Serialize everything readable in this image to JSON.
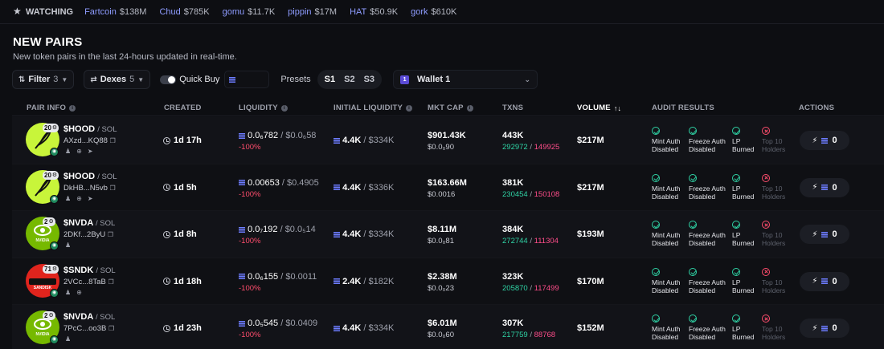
{
  "watchbar": {
    "label": "WATCHING",
    "items": [
      {
        "symbol": "Fartcoin",
        "value": "$138M"
      },
      {
        "symbol": "Chud",
        "value": "$785K"
      },
      {
        "symbol": "gomu",
        "value": "$11.7K"
      },
      {
        "symbol": "pippin",
        "value": "$17M"
      },
      {
        "symbol": "HAT",
        "value": "$50.9K"
      },
      {
        "symbol": "gork",
        "value": "$610K"
      }
    ]
  },
  "page": {
    "title": "NEW PAIRS",
    "subtitle": "New token pairs in the last 24-hours updated in real-time."
  },
  "toolbar": {
    "filter_label": "Filter",
    "filter_count": "3",
    "dexes_label": "Dexes",
    "dexes_count": "5",
    "quick_buy_label": "Quick Buy",
    "presets_label": "Presets",
    "presets": [
      "S1",
      "S2",
      "S3"
    ],
    "wallet_label": "Wallet 1",
    "wallet_icon_text": "1"
  },
  "columns": {
    "pair_info": "PAIR INFO",
    "created": "CREATED",
    "liquidity": "LIQUIDITY",
    "initial_liquidity": "INITIAL LIQUIDITY",
    "mkt_cap": "MKT CAP",
    "txns": "TXNS",
    "volume": "VOLUME",
    "audit_results": "AUDIT RESULTS",
    "actions": "ACTIONS"
  },
  "audit_labels": {
    "mint": "Mint Auth Disabled",
    "freeze": "Freeze Auth Disabled",
    "lp": "LP Burned",
    "top10": "Top 10 Holders"
  },
  "rows": [
    {
      "symbol": "$HOOD",
      "chain": "SOL",
      "address": "AXzd...KQ88",
      "badge": "20",
      "avatar_color": "#c8f53a",
      "avatar_text": "",
      "created": "1d 17h",
      "liq_main": "0.0₆782",
      "liq_sub": "$0.0₆58",
      "liq_pct": "-100%",
      "iliq_main": "4.4K",
      "iliq_sub": "$334K",
      "mcap": "$901.43K",
      "price": "$0.0₀90",
      "txns": "443K",
      "buys": "292972",
      "sells": "149925",
      "volume": "$217M",
      "action": "0"
    },
    {
      "symbol": "$HOOD",
      "chain": "SOL",
      "address": "DkHB...N5vb",
      "badge": "20",
      "avatar_color": "#c8f53a",
      "avatar_text": "",
      "created": "1d 5h",
      "liq_main": "0.00653",
      "liq_sub": "$0.4905",
      "liq_pct": "-100%",
      "iliq_main": "4.4K",
      "iliq_sub": "$336K",
      "mcap": "$163.66M",
      "price": "$0.0016",
      "txns": "381K",
      "buys": "230454",
      "sells": "150108",
      "volume": "$217M",
      "action": "0"
    },
    {
      "symbol": "$NVDA",
      "chain": "SOL",
      "address": "2DKf...2ByU",
      "badge": "2",
      "avatar_color": "#76b900",
      "avatar_text": "NVIDIA",
      "created": "1d 8h",
      "liq_main": "0.0₇192",
      "liq_sub": "$0.0₅14",
      "liq_pct": "-100%",
      "iliq_main": "4.4K",
      "iliq_sub": "$334K",
      "mcap": "$8.11M",
      "price": "$0.0₀81",
      "txns": "384K",
      "buys": "272744",
      "sells": "111304",
      "volume": "$193M",
      "action": "0"
    },
    {
      "symbol": "$SNDK",
      "chain": "SOL",
      "address": "2VCc...8TaB",
      "badge": "71",
      "avatar_color": "#e0241d",
      "avatar_text": "SANDISK",
      "created": "1d 18h",
      "liq_main": "0.0₆155",
      "liq_sub": "$0.0011",
      "liq_pct": "-100%",
      "iliq_main": "2.4K",
      "iliq_sub": "$182K",
      "mcap": "$2.38M",
      "price": "$0.0₀23",
      "txns": "323K",
      "buys": "205870",
      "sells": "117499",
      "volume": "$170M",
      "action": "0"
    },
    {
      "symbol": "$NVDA",
      "chain": "SOL",
      "address": "7PcC...oo3B",
      "badge": "2",
      "avatar_color": "#76b900",
      "avatar_text": "NVIDIA",
      "created": "1d 23h",
      "liq_main": "0.0₅545",
      "liq_sub": "$0.0409",
      "liq_pct": "-100%",
      "iliq_main": "4.4K",
      "iliq_sub": "$334K",
      "mcap": "$6.01M",
      "price": "$0.0₀60",
      "txns": "307K",
      "buys": "217759",
      "sells": "88768",
      "volume": "$152M",
      "action": "0"
    }
  ]
}
